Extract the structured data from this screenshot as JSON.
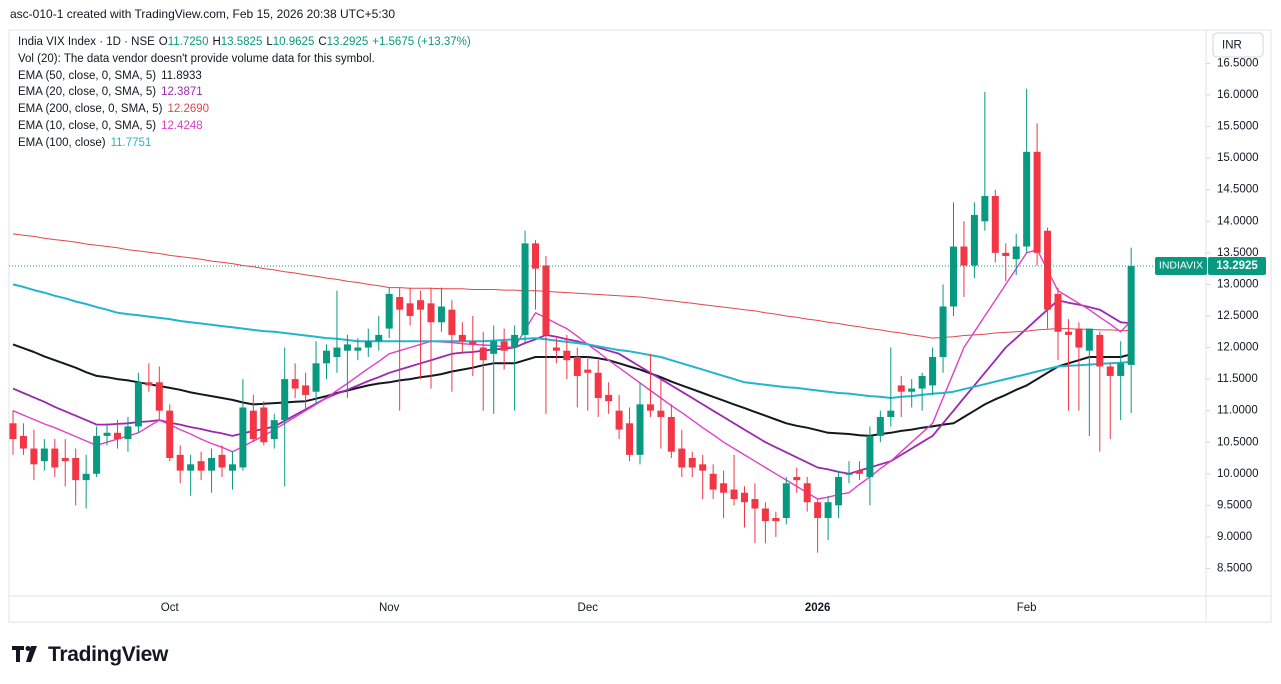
{
  "header": {
    "caption": "asc-010-1 created with TradingView.com, Feb 15, 2026 20:38 UTC+5:30"
  },
  "chart_data": {
    "type": "candlestick",
    "symbol": "India VIX Index · 1D · NSE",
    "ohlc_readout": [
      {
        "key": "O",
        "value": "11.7250"
      },
      {
        "key": "H",
        "value": "13.5825"
      },
      {
        "key": "L",
        "value": "10.9625"
      },
      {
        "key": "C",
        "value": "13.2925"
      }
    ],
    "change": "+1.5675 (+13.37%)",
    "volume_note": "Vol (20): The data vendor doesn't provide volume data for this symbol.",
    "categories": [
      null,
      null,
      null,
      null,
      null,
      null,
      null,
      null,
      null,
      null,
      null,
      null,
      null,
      null,
      null,
      "Oct",
      null,
      null,
      null,
      null,
      null,
      null,
      null,
      null,
      null,
      null,
      null,
      null,
      null,
      null,
      null,
      null,
      null,
      null,
      null,
      null,
      "Nov",
      null,
      null,
      null,
      null,
      null,
      null,
      null,
      null,
      null,
      null,
      null,
      null,
      null,
      null,
      null,
      null,
      null,
      null,
      "Dec",
      null,
      null,
      null,
      null,
      null,
      null,
      null,
      null,
      null,
      null,
      null,
      null,
      null,
      null,
      null,
      null,
      null,
      null,
      null,
      null,
      null,
      "2026",
      null,
      null,
      null,
      null,
      null,
      null,
      null,
      null,
      null,
      null,
      null,
      null,
      null,
      null,
      null,
      null,
      null,
      null,
      null,
      "Feb",
      null,
      null,
      null,
      null,
      null,
      null,
      null,
      null,
      null,
      null
    ],
    "open": [
      10.8,
      10.6,
      10.4,
      10.2,
      10.4,
      10.25,
      10.25,
      9.9,
      10.0,
      10.6,
      10.65,
      10.55,
      10.75,
      11.45,
      11.45,
      11.0,
      10.3,
      10.05,
      10.2,
      10.05,
      10.3,
      10.05,
      10.1,
      11.0,
      11.05,
      10.55,
      10.85,
      11.5,
      11.4,
      11.3,
      11.75,
      11.85,
      11.95,
      11.95,
      12.0,
      12.1,
      12.3,
      12.8,
      12.7,
      12.75,
      12.7,
      12.4,
      12.6,
      12.2,
      12.1,
      12.0,
      11.9,
      12.1,
      12.0,
      12.2,
      13.65,
      13.3,
      12.0,
      11.95,
      11.85,
      11.65,
      11.6,
      11.25,
      11.0,
      10.8,
      10.3,
      11.1,
      11.0,
      10.9,
      10.4,
      10.25,
      10.15,
      10.0,
      9.85,
      9.75,
      9.7,
      9.6,
      9.45,
      9.3,
      9.3,
      9.95,
      9.85,
      9.55,
      9.3,
      9.5,
      10.0,
      10.05,
      9.95,
      10.6,
      10.9,
      11.4,
      11.3,
      11.35,
      11.4,
      11.85,
      12.65,
      13.6,
      13.3,
      14.0,
      14.4,
      13.5,
      13.4,
      13.6,
      15.1,
      13.85,
      12.85,
      12.25,
      12.3,
      11.95,
      12.2,
      11.7,
      11.55,
      11.725
    ],
    "high": [
      11.0,
      10.8,
      10.7,
      10.55,
      10.55,
      10.55,
      10.4,
      10.3,
      10.75,
      10.8,
      10.85,
      10.9,
      11.6,
      11.75,
      11.7,
      11.1,
      10.45,
      10.3,
      10.35,
      10.4,
      10.45,
      10.35,
      11.5,
      11.25,
      11.15,
      10.95,
      12.0,
      11.75,
      11.6,
      12.1,
      12.05,
      12.9,
      12.2,
      12.15,
      12.3,
      12.5,
      12.95,
      12.95,
      12.95,
      12.9,
      12.95,
      12.95,
      12.75,
      12.4,
      12.5,
      12.25,
      12.35,
      12.3,
      12.35,
      13.85,
      13.7,
      13.45,
      12.15,
      12.2,
      12.0,
      11.85,
      11.8,
      11.45,
      11.25,
      11.05,
      11.45,
      11.9,
      11.5,
      11.1,
      10.7,
      10.35,
      10.3,
      10.15,
      10.05,
      10.3,
      9.8,
      9.85,
      9.55,
      9.4,
      9.95,
      10.1,
      9.95,
      9.6,
      9.65,
      10.05,
      10.2,
      10.2,
      10.75,
      11.0,
      12.0,
      11.55,
      11.5,
      11.6,
      12.0,
      13.0,
      14.3,
      14.0,
      14.3,
      16.05,
      14.5,
      13.65,
      13.8,
      16.1,
      15.55,
      13.9,
      12.95,
      12.45,
      12.4,
      12.3,
      12.25,
      11.75,
      12.1,
      13.5825
    ],
    "low": [
      10.3,
      10.3,
      9.9,
      10.05,
      9.95,
      9.8,
      9.5,
      9.45,
      9.95,
      10.45,
      10.4,
      10.35,
      10.65,
      11.3,
      10.85,
      10.2,
      9.85,
      9.65,
      9.9,
      9.7,
      9.95,
      9.75,
      10.05,
      10.5,
      10.45,
      10.4,
      9.8,
      11.2,
      11.0,
      11.1,
      11.5,
      11.6,
      11.2,
      11.8,
      11.85,
      11.95,
      12.15,
      11.0,
      12.35,
      11.5,
      11.35,
      12.25,
      11.3,
      11.9,
      11.55,
      11.0,
      10.95,
      11.65,
      11.0,
      12.05,
      12.6,
      10.95,
      11.75,
      11.5,
      11.05,
      11.0,
      10.9,
      10.95,
      10.55,
      10.2,
      10.15,
      10.9,
      10.4,
      10.25,
      9.95,
      9.95,
      9.6,
      9.6,
      9.3,
      9.5,
      9.15,
      8.9,
      8.9,
      9.0,
      9.2,
      9.7,
      9.4,
      8.75,
      8.95,
      9.3,
      9.85,
      9.9,
      9.5,
      10.5,
      10.75,
      10.9,
      11.05,
      11.0,
      11.25,
      11.6,
      12.5,
      12.8,
      13.1,
      13.85,
      13.35,
      13.05,
      13.15,
      13.5,
      13.3,
      12.3,
      11.8,
      11.0,
      11.0,
      10.6,
      10.35,
      10.55,
      10.85,
      10.9625
    ],
    "close": [
      10.55,
      10.4,
      10.15,
      10.4,
      10.1,
      10.2,
      9.9,
      10.0,
      10.6,
      10.65,
      10.55,
      10.75,
      11.45,
      11.4,
      11.0,
      10.25,
      10.05,
      10.15,
      10.05,
      10.25,
      10.1,
      10.15,
      11.05,
      10.55,
      10.5,
      10.85,
      11.5,
      11.35,
      11.25,
      11.75,
      11.95,
      12.0,
      12.05,
      12.0,
      12.1,
      12.2,
      12.85,
      12.6,
      12.5,
      12.6,
      12.4,
      12.65,
      12.2,
      12.1,
      12.05,
      11.8,
      12.1,
      11.95,
      12.2,
      13.65,
      13.25,
      12.2,
      11.95,
      11.8,
      11.55,
      11.6,
      11.2,
      11.15,
      10.7,
      10.3,
      11.1,
      11.0,
      10.9,
      10.35,
      10.1,
      10.1,
      10.05,
      9.75,
      9.7,
      9.6,
      9.55,
      9.45,
      9.25,
      9.25,
      9.85,
      9.9,
      9.55,
      9.3,
      9.55,
      9.95,
      10.0,
      10.0,
      10.6,
      10.9,
      11.0,
      11.3,
      11.35,
      11.55,
      11.85,
      12.65,
      13.6,
      13.3,
      14.1,
      14.4,
      13.5,
      13.45,
      13.6,
      15.1,
      13.5,
      12.6,
      12.25,
      12.2,
      12.0,
      12.3,
      11.7,
      11.55,
      11.75,
      13.2925
    ],
    "up_color": "#089981",
    "down_color": "#f23645",
    "series": [
      {
        "name": "EMA (50, close, 0, SMA, 5)",
        "color": "#131722",
        "value_label": "11.8933",
        "values": [
          12.05,
          11.99,
          11.93,
          11.86,
          11.8,
          11.74,
          11.68,
          11.61,
          11.55,
          11.53,
          11.5,
          11.48,
          11.45,
          11.42,
          11.39,
          11.36,
          11.33,
          11.29,
          11.26,
          11.23,
          11.2,
          11.17,
          11.13,
          11.1,
          11.11,
          11.12,
          11.13,
          11.14,
          11.15,
          11.19,
          11.23,
          11.28,
          11.32,
          11.36,
          11.4,
          11.43,
          11.45,
          11.48,
          11.5,
          11.53,
          11.55,
          11.58,
          11.62,
          11.65,
          11.68,
          11.72,
          11.75,
          11.75,
          11.75,
          11.8,
          11.85,
          11.85,
          11.85,
          11.85,
          11.85,
          11.85,
          11.83,
          11.8,
          11.75,
          11.7,
          11.65,
          11.59,
          11.53,
          11.46,
          11.4,
          11.34,
          11.28,
          11.22,
          11.16,
          11.1,
          11.04,
          10.98,
          10.92,
          10.86,
          10.8,
          10.76,
          10.73,
          10.69,
          10.65,
          10.64,
          10.63,
          10.61,
          10.6,
          10.63,
          10.65,
          10.68,
          10.7,
          10.73,
          10.75,
          10.78,
          10.8,
          10.9,
          11.0,
          11.1,
          11.18,
          11.25,
          11.33,
          11.4,
          11.5,
          11.6,
          11.7,
          11.75,
          11.8,
          11.85,
          11.85,
          11.85,
          11.85,
          11.8933
        ]
      },
      {
        "name": "EMA (20, close, 0, SMA, 5)",
        "color": "#9c27b0",
        "value_label": "12.3871",
        "values": [
          11.35,
          11.28,
          11.21,
          11.14,
          11.06,
          10.99,
          10.92,
          10.85,
          10.78,
          10.78,
          10.79,
          10.8,
          10.82,
          10.83,
          10.85,
          10.81,
          10.78,
          10.74,
          10.71,
          10.67,
          10.64,
          10.6,
          10.64,
          10.68,
          10.71,
          10.75,
          10.84,
          10.93,
          11.02,
          11.11,
          11.2,
          11.27,
          11.33,
          11.4,
          11.47,
          11.53,
          11.6,
          11.65,
          11.7,
          11.75,
          11.8,
          11.85,
          11.9,
          11.92,
          11.93,
          11.95,
          11.97,
          11.98,
          12.0,
          12.07,
          12.13,
          12.2,
          12.17,
          12.13,
          12.1,
          12.05,
          12.0,
          11.95,
          11.9,
          11.8,
          11.7,
          11.6,
          11.5,
          11.4,
          11.3,
          11.2,
          11.1,
          11.0,
          10.9,
          10.8,
          10.7,
          10.6,
          10.5,
          10.42,
          10.34,
          10.26,
          10.18,
          10.1,
          10.07,
          10.03,
          10.0,
          10.05,
          10.1,
          10.15,
          10.2,
          10.3,
          10.4,
          10.5,
          10.6,
          10.8,
          11.0,
          11.2,
          11.4,
          11.6,
          11.8,
          12.0,
          12.15,
          12.3,
          12.45,
          12.6,
          12.75,
          12.71,
          12.68,
          12.64,
          12.6,
          12.5,
          12.4,
          12.3871
        ]
      },
      {
        "name": "EMA (200, close, 0, SMA, 5)",
        "color": "#e0484c",
        "value_label": "12.2690",
        "values": [
          13.8,
          13.78,
          13.76,
          13.73,
          13.71,
          13.69,
          13.67,
          13.64,
          13.62,
          13.6,
          13.58,
          13.55,
          13.53,
          13.51,
          13.49,
          13.46,
          13.44,
          13.42,
          13.4,
          13.37,
          13.35,
          13.33,
          13.3,
          13.28,
          13.25,
          13.23,
          13.2,
          13.18,
          13.15,
          13.13,
          13.1,
          13.08,
          13.05,
          13.03,
          13.0,
          12.98,
          12.95,
          12.95,
          12.94,
          12.94,
          12.94,
          12.93,
          12.93,
          12.93,
          12.92,
          12.92,
          12.92,
          12.91,
          12.91,
          12.9,
          12.9,
          12.89,
          12.88,
          12.87,
          12.86,
          12.85,
          12.84,
          12.83,
          12.82,
          12.81,
          12.8,
          12.78,
          12.76,
          12.74,
          12.72,
          12.7,
          12.68,
          12.66,
          12.64,
          12.62,
          12.6,
          12.58,
          12.55,
          12.53,
          12.5,
          12.48,
          12.45,
          12.43,
          12.4,
          12.38,
          12.35,
          12.33,
          12.3,
          12.28,
          12.25,
          12.23,
          12.2,
          12.18,
          12.15,
          12.16,
          12.17,
          12.19,
          12.2,
          12.21,
          12.23,
          12.24,
          12.25,
          12.26,
          12.28,
          12.29,
          12.3,
          12.3,
          12.29,
          12.29,
          12.28,
          12.28,
          12.27,
          12.269
        ]
      },
      {
        "name": "EMA (10, close, 0, SMA, 5)",
        "color": "#e040c8",
        "value_label": "12.4248",
        "values": [
          11.0,
          10.93,
          10.86,
          10.79,
          10.73,
          10.66,
          10.59,
          10.52,
          10.45,
          10.5,
          10.55,
          10.6,
          10.65,
          10.75,
          10.85,
          10.78,
          10.7,
          10.63,
          10.55,
          10.48,
          10.42,
          10.35,
          10.43,
          10.52,
          10.6,
          10.7,
          10.8,
          10.9,
          11.0,
          11.1,
          11.2,
          11.32,
          11.43,
          11.55,
          11.67,
          11.78,
          11.9,
          11.95,
          12.0,
          12.05,
          12.1,
          12.09,
          12.08,
          12.06,
          12.05,
          12.04,
          12.03,
          12.01,
          12.0,
          12.28,
          12.55,
          12.47,
          12.38,
          12.3,
          12.18,
          12.05,
          11.93,
          11.8,
          11.68,
          11.56,
          11.44,
          11.32,
          11.2,
          11.08,
          10.97,
          10.85,
          10.73,
          10.62,
          10.5,
          10.4,
          10.3,
          10.2,
          10.1,
          10.0,
          9.9,
          9.8,
          9.7,
          9.6,
          9.63,
          9.67,
          9.7,
          9.83,
          9.95,
          10.08,
          10.2,
          10.35,
          10.5,
          10.65,
          10.8,
          11.2,
          11.6,
          12.0,
          12.25,
          12.5,
          12.75,
          13.0,
          13.25,
          13.5,
          13.55,
          13.23,
          12.9,
          12.8,
          12.7,
          12.6,
          12.48,
          12.37,
          12.25,
          12.4248
        ]
      },
      {
        "name": "EMA (100, close)",
        "color": "#22b5cc",
        "value_label": "11.7751",
        "values": [
          13.0,
          12.96,
          12.91,
          12.87,
          12.82,
          12.78,
          12.73,
          12.69,
          12.64,
          12.6,
          12.55,
          12.53,
          12.51,
          12.49,
          12.47,
          12.45,
          12.42,
          12.4,
          12.38,
          12.36,
          12.34,
          12.32,
          12.3,
          12.28,
          12.26,
          12.25,
          12.23,
          12.21,
          12.19,
          12.17,
          12.15,
          12.14,
          12.12,
          12.1,
          12.1,
          12.1,
          12.1,
          12.1,
          12.1,
          12.1,
          12.1,
          12.1,
          12.1,
          12.1,
          12.1,
          12.1,
          12.11,
          12.12,
          12.13,
          12.14,
          12.15,
          12.13,
          12.11,
          12.09,
          12.07,
          12.05,
          12.02,
          11.99,
          11.96,
          11.94,
          11.91,
          11.88,
          11.85,
          11.8,
          11.75,
          11.7,
          11.65,
          11.6,
          11.55,
          11.5,
          11.45,
          11.43,
          11.41,
          11.39,
          11.37,
          11.36,
          11.34,
          11.32,
          11.3,
          11.28,
          11.27,
          11.25,
          11.23,
          11.22,
          11.2,
          11.22,
          11.23,
          11.25,
          11.27,
          11.28,
          11.3,
          11.34,
          11.38,
          11.42,
          11.46,
          11.5,
          11.54,
          11.58,
          11.62,
          11.66,
          11.7,
          11.71,
          11.72,
          11.73,
          11.74,
          11.75,
          11.76,
          11.7751
        ]
      }
    ],
    "ylim": [
      8.08,
      17.03
    ],
    "yticks": [
      {
        "value": 8.5,
        "label": "8.5000"
      },
      {
        "value": 9,
        "label": "9.0000"
      },
      {
        "value": 9.5,
        "label": "9.5000"
      },
      {
        "value": 10,
        "label": "10.0000"
      },
      {
        "value": 10.5,
        "label": "10.5000"
      },
      {
        "value": 11,
        "label": "11.0000"
      },
      {
        "value": 11.5,
        "label": "11.5000"
      },
      {
        "value": 12,
        "label": "12.0000"
      },
      {
        "value": 12.5,
        "label": "12.5000"
      },
      {
        "value": 13,
        "label": "13.0000"
      },
      {
        "value": 13.5,
        "label": "13.5000"
      },
      {
        "value": 14,
        "label": "14.0000"
      },
      {
        "value": 14.5,
        "label": "14.5000"
      },
      {
        "value": 15,
        "label": "15.0000"
      },
      {
        "value": 15.5,
        "label": "15.5000"
      },
      {
        "value": 16,
        "label": "16.0000"
      },
      {
        "value": 16.5,
        "label": "16.5000"
      }
    ],
    "currency": "INR",
    "price_tag": {
      "name": "INDIAVIX",
      "label": "13.2925"
    }
  },
  "footer": {
    "brand": "TradingView"
  }
}
